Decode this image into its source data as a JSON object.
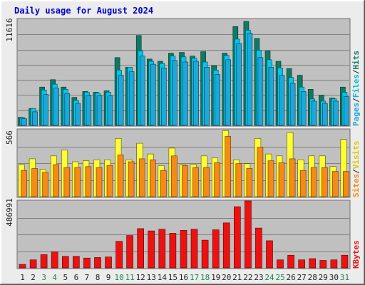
{
  "title": "Daily usage for August 2024",
  "colors": {
    "frame_bg": "#ececec",
    "plot_bg": "#c0c0c0",
    "grid": "#808080",
    "title": "#0000cc",
    "hits": "#0f7a63",
    "files": "#00c8e8",
    "pages": "#1da8d8",
    "visits": "#ffff33",
    "sites": "#f58a14",
    "kbytes": "#ee1111",
    "weekday_label": "#222222",
    "weekend_label": "#1a8a4a"
  },
  "days": [
    "1",
    "2",
    "3",
    "4",
    "5",
    "6",
    "7",
    "8",
    "9",
    "10",
    "11",
    "12",
    "13",
    "14",
    "15",
    "16",
    "17",
    "18",
    "19",
    "20",
    "21",
    "22",
    "23",
    "24",
    "25",
    "26",
    "27",
    "28",
    "29",
    "30",
    "31"
  ],
  "weekend_days": [
    "3",
    "4",
    "10",
    "11",
    "17",
    "18",
    "24",
    "25",
    "31"
  ],
  "chart_data": [
    {
      "type": "bar",
      "panel": "hits-files-pages",
      "y_tick_label": "11616",
      "ylim": [
        0,
        14400
      ],
      "legend": {
        "pages_label": "Pages",
        "files_label": "Files",
        "hits_label": "Hits",
        "sep1": "/",
        "sep2": "/"
      },
      "series": [
        {
          "name": "Hits",
          "values": [
            1100,
            2300,
            5200,
            6200,
            5200,
            3800,
            4600,
            4500,
            4700,
            9200,
            7900,
            12200,
            9000,
            8700,
            9800,
            9900,
            9400,
            10000,
            8100,
            9800,
            13400,
            14100,
            11800,
            10100,
            8700,
            7700,
            6800,
            4900,
            4100,
            3700,
            5200
          ]
        },
        {
          "name": "Files",
          "values": [
            1050,
            2300,
            4800,
            5600,
            4900,
            3400,
            4500,
            4400,
            4500,
            7500,
            7900,
            10100,
            8700,
            8400,
            9400,
            9300,
            9100,
            8600,
            7500,
            9500,
            11700,
            12900,
            10200,
            8900,
            7800,
            6500,
            5200,
            3600,
            3300,
            3600,
            4500
          ]
        },
        {
          "name": "Pages",
          "values": [
            900,
            1850,
            4200,
            5050,
            4300,
            3000,
            4050,
            4000,
            4000,
            6800,
            7300,
            9400,
            8300,
            7800,
            8800,
            8600,
            8700,
            7900,
            6900,
            8900,
            11100,
            12500,
            9200,
            7900,
            6800,
            5700,
            4600,
            3300,
            3000,
            3300,
            3900
          ]
        }
      ]
    },
    {
      "type": "bar",
      "panel": "visits-sites",
      "y_tick_label": "566",
      "ylim": [
        0,
        690
      ],
      "legend": {
        "sites_label": "Sites",
        "visits_label": "Visits",
        "sep": "/"
      },
      "series": [
        {
          "name": "Visits",
          "values": [
            330,
            390,
            280,
            420,
            480,
            360,
            370,
            380,
            380,
            600,
            380,
            550,
            440,
            320,
            500,
            330,
            330,
            420,
            400,
            680,
            380,
            340,
            600,
            440,
            420,
            660,
            380,
            420,
            420,
            310,
            590
          ]
        },
        {
          "name": "Sites",
          "values": [
            270,
            290,
            250,
            330,
            300,
            300,
            310,
            300,
            320,
            430,
            360,
            390,
            380,
            270,
            420,
            320,
            300,
            300,
            350,
            620,
            340,
            290,
            510,
            370,
            350,
            390,
            270,
            300,
            300,
            260,
            260
          ]
        }
      ]
    },
    {
      "type": "bar",
      "panel": "kbytes",
      "y_tick_label": "486991",
      "ylim": [
        0,
        580000
      ],
      "legend": {
        "kbytes_label": "KBytes"
      },
      "series": [
        {
          "name": "KBytes",
          "values": [
            30000,
            70000,
            115000,
            140000,
            100000,
            100000,
            85000,
            90000,
            95000,
            230000,
            280000,
            340000,
            320000,
            335000,
            300000,
            325000,
            335000,
            240000,
            330000,
            390000,
            530000,
            605000,
            345000,
            235000,
            70000,
            110000,
            70000,
            80000,
            65000,
            70000,
            110000
          ]
        }
      ]
    }
  ]
}
